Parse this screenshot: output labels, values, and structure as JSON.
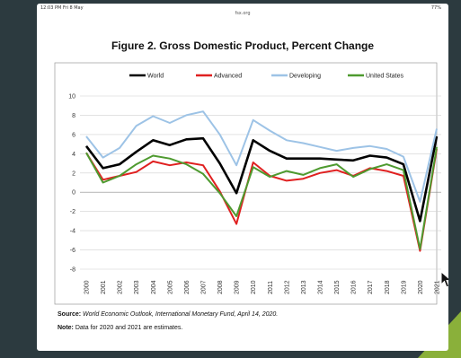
{
  "status_bar": {
    "time": "12:03 PM  Fri 8 May",
    "url": "fsx.org",
    "battery": "77%"
  },
  "figure": {
    "title": "Figure 2. Gross Domestic Product, Percent Change",
    "source_label": "Source:",
    "source_text": "World Economic Outlook, International Monetary Fund, April 14, 2020.",
    "note_label": "Note:",
    "note_text": "Data for 2020 and 2021 are estimates."
  },
  "colors": {
    "World": "#000000",
    "Advanced": "#e02020",
    "Developing": "#9dc3e6",
    "United States": "#4e9a2f",
    "grid": "#d0d0d0"
  },
  "chart_data": {
    "type": "line",
    "title": "Figure 2. Gross Domestic Product, Percent Change",
    "xlabel": "",
    "ylabel": "",
    "x": [
      "2000",
      "2001",
      "2002",
      "2003",
      "2004",
      "2005",
      "2006",
      "2007",
      "2008",
      "2009",
      "2010",
      "2011",
      "2012",
      "2013",
      "2014",
      "2015",
      "2016",
      "2017",
      "2018",
      "2019",
      "2020",
      "2021"
    ],
    "ylim": [
      -8,
      10
    ],
    "yticks": [
      10,
      8,
      6,
      4,
      2,
      0,
      -2,
      -4,
      -6,
      -8
    ],
    "grid": true,
    "legend_position": "top",
    "series": [
      {
        "name": "World",
        "values": [
          4.8,
          2.5,
          2.9,
          4.2,
          5.4,
          4.9,
          5.5,
          5.6,
          3.0,
          -0.1,
          5.4,
          4.3,
          3.5,
          3.5,
          3.5,
          3.4,
          3.3,
          3.8,
          3.6,
          2.9,
          -3.0,
          5.8
        ]
      },
      {
        "name": "Advanced",
        "values": [
          4.1,
          1.3,
          1.7,
          2.1,
          3.2,
          2.8,
          3.1,
          2.8,
          0.1,
          -3.3,
          3.1,
          1.7,
          1.2,
          1.4,
          2.0,
          2.3,
          1.7,
          2.5,
          2.2,
          1.7,
          -6.1,
          4.5
        ]
      },
      {
        "name": "Developing",
        "values": [
          5.8,
          3.6,
          4.6,
          6.9,
          7.9,
          7.2,
          8.0,
          8.4,
          6.0,
          2.8,
          7.5,
          6.4,
          5.4,
          5.1,
          4.7,
          4.3,
          4.6,
          4.8,
          4.5,
          3.7,
          -1.0,
          6.6
        ]
      },
      {
        "name": "United States",
        "values": [
          4.1,
          1.0,
          1.7,
          2.9,
          3.8,
          3.5,
          2.9,
          1.9,
          -0.1,
          -2.5,
          2.6,
          1.6,
          2.2,
          1.8,
          2.5,
          2.9,
          1.6,
          2.4,
          2.9,
          2.3,
          -5.9,
          4.7
        ]
      }
    ]
  }
}
